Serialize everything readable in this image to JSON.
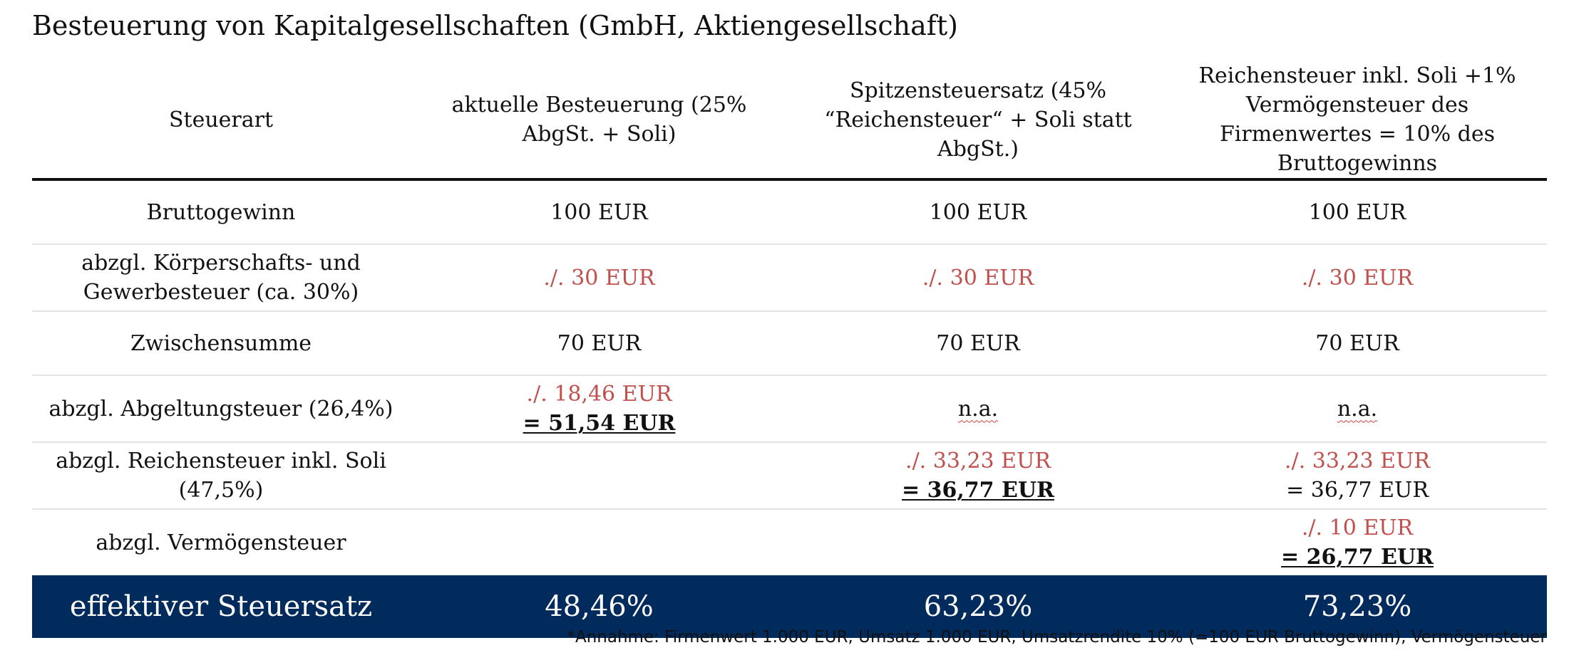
{
  "title": "Besteuerung von Kapitalgesellschaften (GmbH, Aktiengesellschaft)",
  "colors": {
    "negative": "#c0504d",
    "footer_background": "#002b5c",
    "footer_text": "#ffffff"
  },
  "header": {
    "tax_type": "Steuerart",
    "current": "aktuelle Besteuerung (25% AbgSt. + Soli)",
    "top_rate": "Spitzensteuersatz (45% “Reichensteuer“ + Soli statt AbgSt.)",
    "wealth": "Reichensteuer inkl. Soli +1% Vermögensteuer des Firmenwertes = 10% des Bruttogewinns"
  },
  "rows": {
    "gross": {
      "label": "Bruttogewinn",
      "current": "100 EUR",
      "top_rate": "100 EUR",
      "wealth": "100 EUR"
    },
    "corporate": {
      "label": "abzgl. Körperschafts- und Gewerbesteuer (ca. 30%)",
      "current": "./. 30 EUR",
      "top_rate": "./. 30 EUR",
      "wealth": "./. 30 EUR"
    },
    "subtotal": {
      "label": "Zwischensumme",
      "current": "70 EUR",
      "top_rate": "70 EUR",
      "wealth": "70 EUR"
    },
    "withholding": {
      "label": "abzgl. Abgeltungsteuer (26,4%)",
      "current_deduction": "./. 18,46 EUR",
      "current_result": "= 51,54 EUR",
      "top_rate": "n.a.",
      "wealth": "n.a."
    },
    "rich_tax": {
      "label": "abzgl. Reichensteuer inkl. Soli (47,5%)",
      "top_rate_deduction": "./. 33,23 EUR",
      "top_rate_result": "= 36,77 EUR",
      "wealth_deduction": "./. 33,23 EUR",
      "wealth_result": "= 36,77 EUR"
    },
    "wealth_tax": {
      "label": "abzgl. Vermögensteuer",
      "wealth_deduction": "./. 10 EUR",
      "wealth_result": "= 26,77 EUR"
    }
  },
  "footer": {
    "label": "effektiver Steuersatz",
    "current": "48,46%",
    "top_rate": "63,23%",
    "wealth": "73,23%"
  },
  "footnote": "*Annahme: Firmenwert 1.000 EUR, Umsatz 1.000 EUR, Umsatzrendite 10% (=100 EUR Bruttogewinn), Vermögensteuer"
}
